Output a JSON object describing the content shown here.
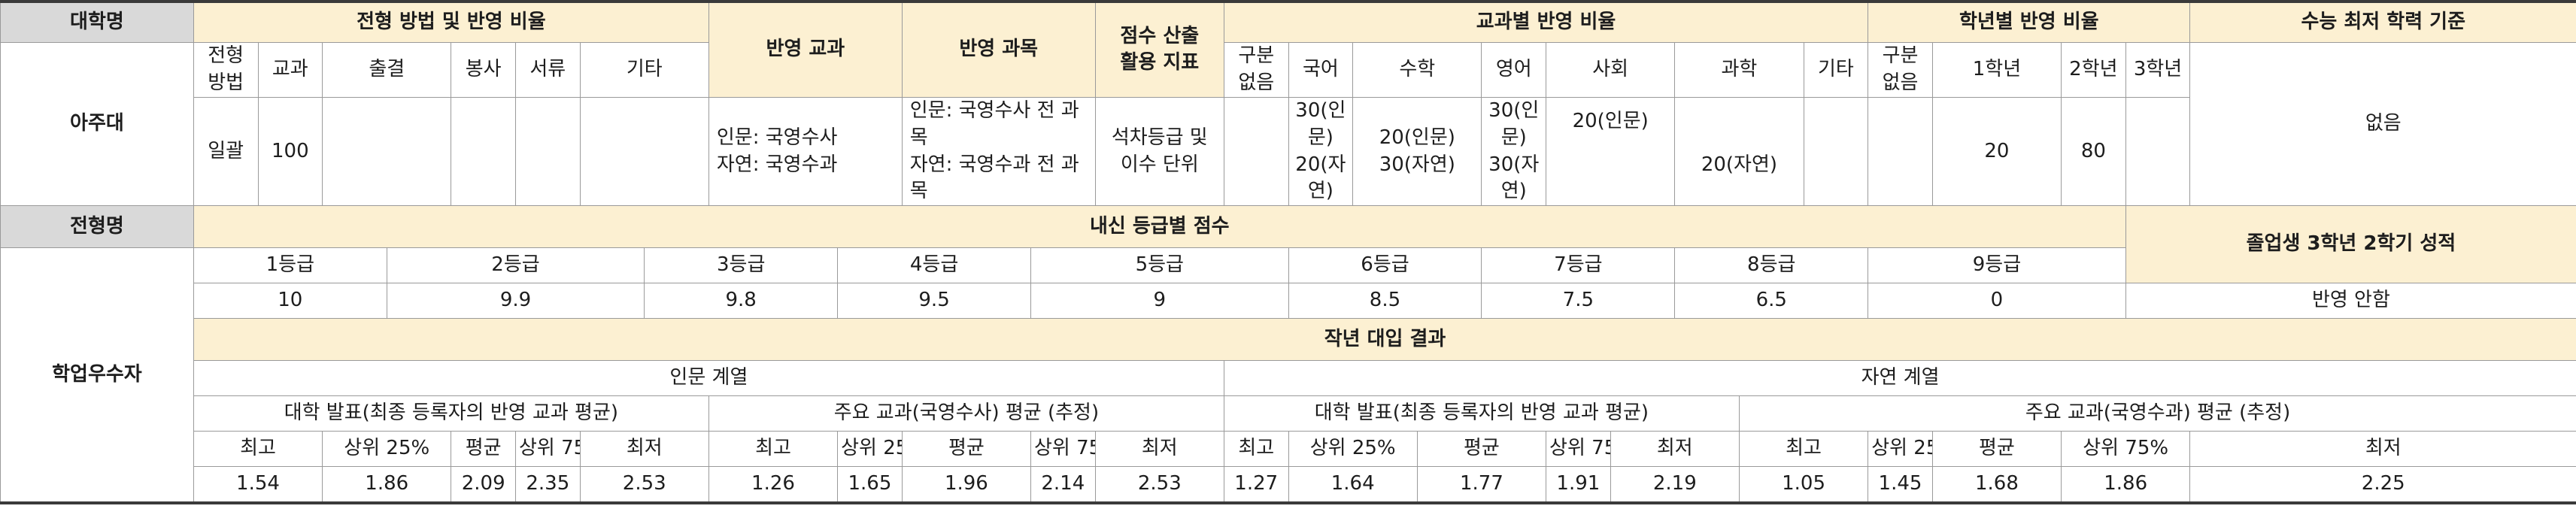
{
  "labels": {
    "university_header": "대학명",
    "university": "아주대",
    "method_ratio": "전형 방법 및 반영 비율",
    "reflect_subject": "반영 교과",
    "reflect_course": "반영 과목",
    "score_index": "점수 산출\n활용 지표",
    "subject_ratio": "교과별 반영 비율",
    "grade_ratio": "학년별 반영 비율",
    "csat_min": "수능 최저 학력 기준",
    "type_header": "전형명",
    "type_name": "학업우수자",
    "grade_scores": "내신 등급별 점수",
    "graduate_label": "졸업생 3학년 2학기 성적",
    "last_year_results": "작년 대입 결과",
    "humanities": "인문 계열",
    "natural": "자연 계열"
  },
  "method_headers": [
    "전형\n방법",
    "교과",
    "출결",
    "봉사",
    "서류",
    "기타"
  ],
  "method_values": [
    "일괄",
    "100",
    "",
    "",
    "",
    ""
  ],
  "reflect_subject_value": "인문: 국영수사\n자연: 국영수과",
  "reflect_course_value": "인문: 국영수사 전 과목\n자연: 국영수과 전 과목",
  "score_index_value": "석차등급 및\n이수 단위",
  "subject_headers": [
    "구분\n없음",
    "국어",
    "수학",
    "영어",
    "사회",
    "과학",
    "기타"
  ],
  "subject_values": [
    "",
    "30(인문)\n20(자연)",
    "20(인문)\n30(자연)",
    "30(인문)\n30(자연)",
    "20(인문)",
    "\n20(자연)",
    ""
  ],
  "year_headers": [
    "구분\n없음",
    "1학년",
    "2학년",
    "3학년"
  ],
  "year_values": [
    "",
    "20",
    "80",
    ""
  ],
  "csat_value": "없음",
  "grades": [
    "1등급",
    "2등급",
    "3등급",
    "4등급",
    "5등급",
    "6등급",
    "7등급",
    "8등급",
    "9등급"
  ],
  "grade_points": [
    "10",
    "9.9",
    "9.8",
    "9.5",
    "9",
    "8.5",
    "7.5",
    "6.5",
    "0"
  ],
  "graduate_value": "반영 안함",
  "results": {
    "group_titles": [
      "대학 발표(최종 등록자의 반영 교과 평균)",
      "주요 교과(국영수사) 평균 (추정)",
      "대학 발표(최종 등록자의 반영 교과 평균)",
      "주요 교과(국영수과) 평균 (추정)"
    ],
    "stat_headers": [
      "최고",
      "상위 25%",
      "평균",
      "상위 75%",
      "최저"
    ],
    "values": [
      [
        "1.54",
        "1.86",
        "2.09",
        "2.35",
        "2.53"
      ],
      [
        "1.26",
        "1.65",
        "1.96",
        "2.14",
        "2.53"
      ],
      [
        "1.27",
        "1.64",
        "1.77",
        "1.91",
        "2.19"
      ],
      [
        "1.05",
        "1.45",
        "1.68",
        "1.86",
        "2.25"
      ]
    ]
  },
  "colors": {
    "gray_header": "#d9d9d9",
    "cream_header": "#fcf0d2",
    "rule": "#3a3a3a"
  }
}
